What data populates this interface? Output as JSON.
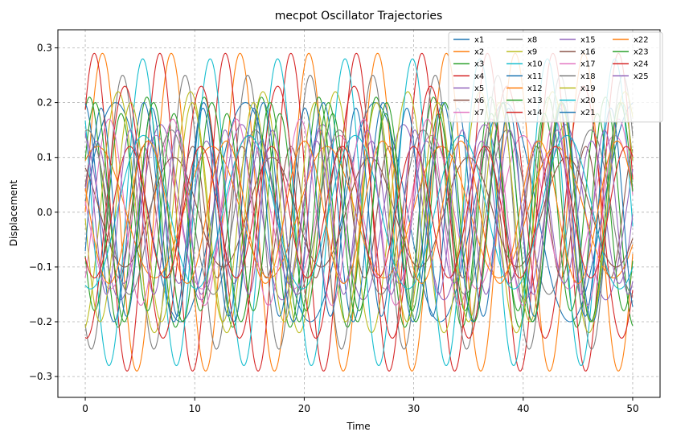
{
  "chart_data": {
    "type": "line",
    "title": "mecpot Oscillator Trajectories",
    "xlabel": "Time",
    "ylabel": "Displacement",
    "xlim": [
      -2.5,
      52.5
    ],
    "ylim": [
      -0.338,
      0.333
    ],
    "xticks": [
      0,
      10,
      20,
      30,
      40,
      50
    ],
    "xtick_labels": [
      "0",
      "10",
      "20",
      "30",
      "40",
      "50"
    ],
    "yticks": [
      -0.3,
      -0.2,
      -0.1,
      0.0,
      0.1,
      0.2,
      0.3
    ],
    "ytick_labels": [
      "−0.3",
      "−0.2",
      "−0.1",
      "0.0",
      "0.1",
      "0.2",
      "0.3"
    ],
    "grid": true,
    "grid_style": "dashed",
    "legend_position": "upper-right",
    "legend_columns": 4,
    "x_range": [
      0,
      50
    ],
    "series": [
      {
        "name": "x1",
        "color": "#1f77b4",
        "amplitude": 0.2,
        "omega": 0.53,
        "phase": 0.1,
        "offset": 0.0
      },
      {
        "name": "x2",
        "color": "#ff7f0e",
        "amplitude": 0.29,
        "omega": 1.0,
        "phase": 0.0,
        "offset": 0.0
      },
      {
        "name": "x3",
        "color": "#2ca02c",
        "amplitude": 0.21,
        "omega": 1.2,
        "phase": 1.1,
        "offset": 0.0
      },
      {
        "name": "x4",
        "color": "#d62728",
        "amplitude": 0.29,
        "omega": 1.05,
        "phase": 0.7,
        "offset": 0.0
      },
      {
        "name": "x5",
        "color": "#9467bd",
        "amplitude": 0.16,
        "omega": 0.85,
        "phase": 2.0,
        "offset": 0.0
      },
      {
        "name": "x6",
        "color": "#8c564b",
        "amplitude": 0.12,
        "omega": 1.4,
        "phase": 0.4,
        "offset": 0.0
      },
      {
        "name": "x7",
        "color": "#e377c2",
        "amplitude": 0.14,
        "omega": 0.75,
        "phase": 3.0,
        "offset": 0.0
      },
      {
        "name": "x8",
        "color": "#7f7f7f",
        "amplitude": 0.25,
        "omega": 1.1,
        "phase": 4.1,
        "offset": 0.0
      },
      {
        "name": "x9",
        "color": "#bcbd22",
        "amplitude": 0.22,
        "omega": 0.95,
        "phase": 5.0,
        "offset": 0.0
      },
      {
        "name": "x10",
        "color": "#17becf",
        "amplitude": 0.28,
        "omega": 1.02,
        "phase": 2.5,
        "offset": 0.0
      },
      {
        "name": "x11",
        "color": "#1f77b4",
        "amplitude": 0.2,
        "omega": 1.15,
        "phase": 1.7,
        "offset": 0.0
      },
      {
        "name": "x12",
        "color": "#ff7f0e",
        "amplitude": 0.12,
        "omega": 0.6,
        "phase": 0.9,
        "offset": 0.0
      },
      {
        "name": "x13",
        "color": "#2ca02c",
        "amplitude": 0.18,
        "omega": 1.3,
        "phase": 3.6,
        "offset": 0.0
      },
      {
        "name": "x14",
        "color": "#d62728",
        "amplitude": 0.23,
        "omega": 0.9,
        "phase": 4.6,
        "offset": 0.0
      },
      {
        "name": "x15",
        "color": "#9467bd",
        "amplitude": 0.13,
        "omega": 1.25,
        "phase": 0.3,
        "offset": 0.0
      },
      {
        "name": "x16",
        "color": "#8c564b",
        "amplitude": 0.1,
        "omega": 0.7,
        "phase": 2.2,
        "offset": 0.0
      },
      {
        "name": "x17",
        "color": "#e377c2",
        "amplitude": 0.17,
        "omega": 1.08,
        "phase": 5.5,
        "offset": 0.0
      },
      {
        "name": "x18",
        "color": "#7f7f7f",
        "amplitude": 0.15,
        "omega": 0.82,
        "phase": 1.4,
        "offset": 0.0
      },
      {
        "name": "x19",
        "color": "#bcbd22",
        "amplitude": 0.2,
        "omega": 1.12,
        "phase": 3.2,
        "offset": 0.0
      },
      {
        "name": "x20",
        "color": "#17becf",
        "amplitude": 0.14,
        "omega": 0.65,
        "phase": 4.4,
        "offset": 0.0
      },
      {
        "name": "x21",
        "color": "#1f77b4",
        "amplitude": 0.19,
        "omega": 1.35,
        "phase": 5.9,
        "offset": 0.0
      },
      {
        "name": "x22",
        "color": "#ff7f0e",
        "amplitude": 0.13,
        "omega": 0.88,
        "phase": 2.8,
        "offset": 0.0
      },
      {
        "name": "x23",
        "color": "#2ca02c",
        "amplitude": 0.2,
        "omega": 1.18,
        "phase": 0.5,
        "offset": 0.0
      },
      {
        "name": "x24",
        "color": "#d62728",
        "amplitude": 0.12,
        "omega": 0.97,
        "phase": 3.9,
        "offset": 0.0
      },
      {
        "name": "x25",
        "color": "#9467bd",
        "amplitude": 0.15,
        "omega": 1.45,
        "phase": 1.9,
        "offset": 0.0
      }
    ]
  }
}
